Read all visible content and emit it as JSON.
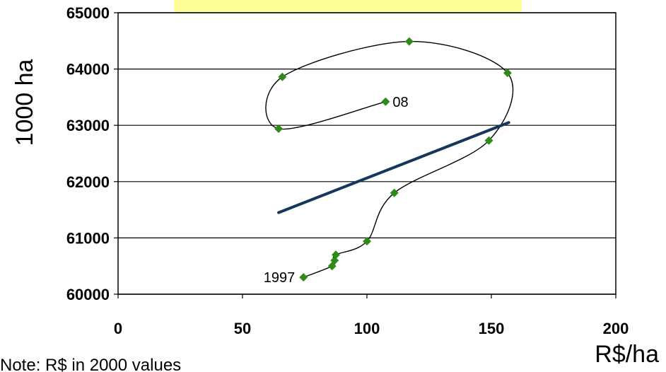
{
  "note": "Note: R$ in 2000 values",
  "chart_data": {
    "type": "scatter",
    "xlabel": "R$/ha",
    "ylabel": "1000 ha",
    "xlim": [
      0,
      200
    ],
    "ylim": [
      60000,
      65000
    ],
    "x_ticks": [
      "0",
      "50",
      "100",
      "150",
      "200"
    ],
    "y_ticks": [
      "60000",
      "61000",
      "62000",
      "63000",
      "64000",
      "65000"
    ],
    "grid": "horizontal",
    "legend": "none",
    "series": [
      {
        "marker_color": "#2e8b1a",
        "points": [
          {
            "x": 74.5,
            "y": 60300
          },
          {
            "x": 86,
            "y": 60500
          },
          {
            "x": 87,
            "y": 60600
          },
          {
            "x": 87.5,
            "y": 60700
          },
          {
            "x": 100,
            "y": 60940
          },
          {
            "x": 111,
            "y": 61800
          },
          {
            "x": 149,
            "y": 62730
          },
          {
            "x": 156.5,
            "y": 63930
          },
          {
            "x": 117,
            "y": 64490
          },
          {
            "x": 66,
            "y": 63860
          },
          {
            "x": 64.5,
            "y": 62940
          },
          {
            "x": 107.5,
            "y": 63420
          }
        ]
      }
    ],
    "trend_line": {
      "color": "#17365d",
      "from": {
        "x": 64.5,
        "y": 61450
      },
      "to": {
        "x": 157,
        "y": 63050
      }
    },
    "point_labels": [
      {
        "text": "1997",
        "point_index": 0
      },
      {
        "text": "08",
        "point_index": 11
      }
    ],
    "highlight_box_color": "#ffff99"
  }
}
